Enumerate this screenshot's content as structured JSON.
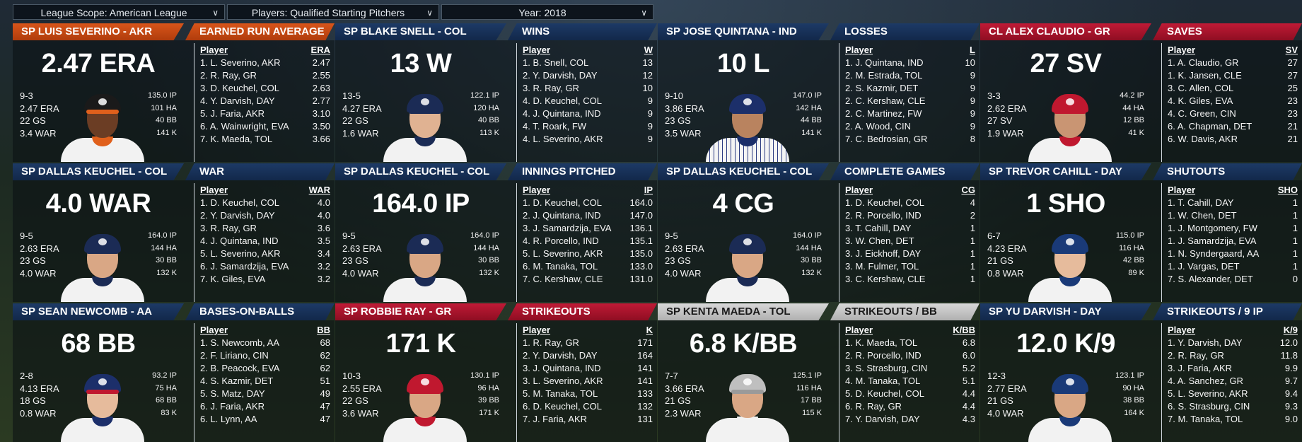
{
  "filters": {
    "scope": "League Scope: American League",
    "players": "Players: Qualified Starting Pitchers",
    "year": "Year: 2018"
  },
  "cards": [
    {
      "left_title": "SP LUIS SEVERINO - AKR",
      "right_title": "EARNED RUN AVERAGE",
      "color": "orange",
      "big": "2.47 ERA",
      "lstats": [
        "9-3",
        "2.47 ERA",
        "22 GS",
        "3.4 WAR"
      ],
      "rstats": [
        "135.0 IP",
        "101 HA",
        "40 BB",
        "141 K"
      ],
      "cap": "#1a1a1a",
      "bill": "#e0601c",
      "collar": "#e0601c",
      "skin": "#6b3d24",
      "pin": false,
      "header": [
        "Player",
        "ERA"
      ],
      "rows": [
        [
          "1. L. Severino, AKR",
          "2.47"
        ],
        [
          "2. R. Ray, GR",
          "2.55"
        ],
        [
          "3. D. Keuchel, COL",
          "2.63"
        ],
        [
          "4. Y. Darvish, DAY",
          "2.77"
        ],
        [
          "5. J. Faria, AKR",
          "3.10"
        ],
        [
          "6. A. Wainwright, EVA",
          "3.50"
        ],
        [
          "7. K. Maeda, TOL",
          "3.66"
        ]
      ]
    },
    {
      "left_title": "SP BLAKE SNELL - COL",
      "right_title": "WINS",
      "color": "navy",
      "big": "13 W",
      "lstats": [
        "13-5",
        "4.27 ERA",
        "22 GS",
        "1.6 WAR"
      ],
      "rstats": [
        "122.1 IP",
        "120 HA",
        "40 BB",
        "113 K"
      ],
      "cap": "#1b2b55",
      "bill": "#1b2b55",
      "collar": "#1b2b55",
      "skin": "#e0b292",
      "pin": false,
      "header": [
        "Player",
        "W"
      ],
      "rows": [
        [
          "1. B. Snell, COL",
          "13"
        ],
        [
          "2. Y. Darvish, DAY",
          "12"
        ],
        [
          "3. R. Ray, GR",
          "10"
        ],
        [
          "4. D. Keuchel, COL",
          "9"
        ],
        [
          "4. J. Quintana, IND",
          "9"
        ],
        [
          "4. T. Roark, FW",
          "9"
        ],
        [
          "4. L. Severino, AKR",
          "9"
        ]
      ]
    },
    {
      "left_title": "SP JOSE QUINTANA - IND",
      "right_title": "LOSSES",
      "color": "navy",
      "big": "10 L",
      "lstats": [
        "9-10",
        "3.86 ERA",
        "23 GS",
        "3.5 WAR"
      ],
      "rstats": [
        "147.0 IP",
        "142 HA",
        "44 BB",
        "141 K"
      ],
      "cap": "#1c2f6a",
      "bill": "#1c2f6a",
      "collar": "#1c2f6a",
      "skin": "#b9835f",
      "pin": true,
      "header": [
        "Player",
        "L"
      ],
      "rows": [
        [
          "1. J. Quintana, IND",
          "10"
        ],
        [
          "2. M. Estrada, TOL",
          "9"
        ],
        [
          "2. S. Kazmir, DET",
          "9"
        ],
        [
          "2. C. Kershaw, CLE",
          "9"
        ],
        [
          "2. C. Martinez, FW",
          "9"
        ],
        [
          "2. A. Wood, CIN",
          "9"
        ],
        [
          "7. C. Bedrosian, GR",
          "8"
        ]
      ]
    },
    {
      "left_title": "CL ALEX CLAUDIO - GR",
      "right_title": "SAVES",
      "color": "red",
      "big": "27 SV",
      "lstats": [
        "3-3",
        "2.62 ERA",
        "27 SV",
        "1.9 WAR"
      ],
      "rstats": [
        "44.2 IP",
        "44 HA",
        "12 BB",
        "41 K"
      ],
      "cap": "#c0182f",
      "bill": "#c0182f",
      "collar": "#c0182f",
      "skin": "#c99573",
      "pin": false,
      "header": [
        "Player",
        "SV"
      ],
      "rows": [
        [
          "1. A. Claudio, GR",
          "27"
        ],
        [
          "1. K. Jansen, CLE",
          "27"
        ],
        [
          "3. C. Allen, COL",
          "25"
        ],
        [
          "4. K. Giles, EVA",
          "23"
        ],
        [
          "4. C. Green, CIN",
          "23"
        ],
        [
          "6. A. Chapman, DET",
          "21"
        ],
        [
          "6. W. Davis, AKR",
          "21"
        ]
      ]
    },
    {
      "left_title": "SP DALLAS KEUCHEL - COL",
      "right_title": "WAR",
      "color": "navy",
      "big": "4.0 WAR",
      "lstats": [
        "9-5",
        "2.63 ERA",
        "23 GS",
        "4.0 WAR"
      ],
      "rstats": [
        "164.0 IP",
        "144 HA",
        "30 BB",
        "132 K"
      ],
      "cap": "#1b2b55",
      "bill": "#1b2b55",
      "collar": "#1b2b55",
      "skin": "#d9a785",
      "pin": false,
      "header": [
        "Player",
        "WAR"
      ],
      "rows": [
        [
          "1. D. Keuchel, COL",
          "4.0"
        ],
        [
          "2. Y. Darvish, DAY",
          "4.0"
        ],
        [
          "3. R. Ray, GR",
          "3.6"
        ],
        [
          "4. J. Quintana, IND",
          "3.5"
        ],
        [
          "5. L. Severino, AKR",
          "3.4"
        ],
        [
          "6. J. Samardzija, EVA",
          "3.2"
        ],
        [
          "7. K. Giles, EVA",
          "3.2"
        ]
      ]
    },
    {
      "left_title": "SP DALLAS KEUCHEL - COL",
      "right_title": "INNINGS PITCHED",
      "color": "navy",
      "big": "164.0 IP",
      "lstats": [
        "9-5",
        "2.63 ERA",
        "23 GS",
        "4.0 WAR"
      ],
      "rstats": [
        "164.0 IP",
        "144 HA",
        "30 BB",
        "132 K"
      ],
      "cap": "#1b2b55",
      "bill": "#1b2b55",
      "collar": "#1b2b55",
      "skin": "#d9a785",
      "pin": false,
      "header": [
        "Player",
        "IP"
      ],
      "rows": [
        [
          "1. D. Keuchel, COL",
          "164.0"
        ],
        [
          "2. J. Quintana, IND",
          "147.0"
        ],
        [
          "3. J. Samardzija, EVA",
          "136.1"
        ],
        [
          "4. R. Porcello, IND",
          "135.1"
        ],
        [
          "5. L. Severino, AKR",
          "135.0"
        ],
        [
          "6. M. Tanaka, TOL",
          "133.0"
        ],
        [
          "7. C. Kershaw, CLE",
          "131.0"
        ]
      ]
    },
    {
      "left_title": "SP DALLAS KEUCHEL - COL",
      "right_title": "COMPLETE GAMES",
      "color": "navy",
      "big": "4 CG",
      "lstats": [
        "9-5",
        "2.63 ERA",
        "23 GS",
        "4.0 WAR"
      ],
      "rstats": [
        "164.0 IP",
        "144 HA",
        "30 BB",
        "132 K"
      ],
      "cap": "#1b2b55",
      "bill": "#1b2b55",
      "collar": "#1b2b55",
      "skin": "#d9a785",
      "pin": false,
      "header": [
        "Player",
        "CG"
      ],
      "rows": [
        [
          "1. D. Keuchel, COL",
          "4"
        ],
        [
          "2. R. Porcello, IND",
          "2"
        ],
        [
          "3. T. Cahill, DAY",
          "1"
        ],
        [
          "3. W. Chen, DET",
          "1"
        ],
        [
          "3. J. Eickhoff, DAY",
          "1"
        ],
        [
          "3. M. Fulmer, TOL",
          "1"
        ],
        [
          "3. C. Kershaw, CLE",
          "1"
        ]
      ]
    },
    {
      "left_title": "SP TREVOR CAHILL - DAY",
      "right_title": "SHUTOUTS",
      "color": "navy",
      "big": "1 SHO",
      "lstats": [
        "6-7",
        "4.23 ERA",
        "21 GS",
        "0.8 WAR"
      ],
      "rstats": [
        "115.0 IP",
        "116 HA",
        "42 BB",
        "89 K"
      ],
      "cap": "#1a3a78",
      "bill": "#1a3a78",
      "collar": "#1a3a78",
      "skin": "#e6bb9c",
      "pin": false,
      "header": [
        "Player",
        "SHO"
      ],
      "rows": [
        [
          "1. T. Cahill, DAY",
          "1"
        ],
        [
          "1. W. Chen, DET",
          "1"
        ],
        [
          "1. J. Montgomery, FW",
          "1"
        ],
        [
          "1. J. Samardzija, EVA",
          "1"
        ],
        [
          "1. N. Syndergaard, AA",
          "1"
        ],
        [
          "1. J. Vargas, DET",
          "1"
        ],
        [
          "7. S. Alexander, DET",
          "0"
        ]
      ]
    },
    {
      "left_title": "SP SEAN NEWCOMB - AA",
      "right_title": "BASES-ON-BALLS",
      "color": "navy",
      "big": "68 BB",
      "lstats": [
        "2-8",
        "4.13 ERA",
        "18 GS",
        "0.8 WAR"
      ],
      "rstats": [
        "93.2 IP",
        "75 HA",
        "68 BB",
        "83 K"
      ],
      "cap": "#1c2f6a",
      "bill": "#c0182f",
      "collar": "#1c2f6a",
      "skin": "#e6bb9c",
      "pin": false,
      "header": [
        "Player",
        "BB"
      ],
      "rows": [
        [
          "1. S. Newcomb, AA",
          "68"
        ],
        [
          "2. F. Liriano, CIN",
          "62"
        ],
        [
          "2. B. Peacock, EVA",
          "62"
        ],
        [
          "4. S. Kazmir, DET",
          "51"
        ],
        [
          "5. S. Matz, DAY",
          "49"
        ],
        [
          "6. J. Faria, AKR",
          "47"
        ],
        [
          "6. L. Lynn, AA",
          "47"
        ]
      ]
    },
    {
      "left_title": "SP ROBBIE RAY - GR",
      "right_title": "STRIKEOUTS",
      "color": "red",
      "big": "171 K",
      "lstats": [
        "10-3",
        "2.55 ERA",
        "22 GS",
        "3.6 WAR"
      ],
      "rstats": [
        "130.1 IP",
        "96 HA",
        "39 BB",
        "171 K"
      ],
      "cap": "#c0182f",
      "bill": "#c0182f",
      "collar": "#c0182f",
      "skin": "#d9a785",
      "pin": false,
      "header": [
        "Player",
        "K"
      ],
      "rows": [
        [
          "1. R. Ray, GR",
          "171"
        ],
        [
          "2. Y. Darvish, DAY",
          "164"
        ],
        [
          "3. J. Quintana, IND",
          "141"
        ],
        [
          "3. L. Severino, AKR",
          "141"
        ],
        [
          "5. M. Tanaka, TOL",
          "133"
        ],
        [
          "6. D. Keuchel, COL",
          "132"
        ],
        [
          "7. J. Faria, AKR",
          "131"
        ]
      ]
    },
    {
      "left_title": "SP KENTA MAEDA - TOL",
      "right_title": "STRIKEOUTS / BB",
      "color": "silver",
      "big": "6.8 K/BB",
      "lstats": [
        "7-7",
        "3.66 ERA",
        "21 GS",
        "2.3 WAR"
      ],
      "rstats": [
        "125.1 IP",
        "116 HA",
        "17 BB",
        "115 K"
      ],
      "cap": "#bfbfbf",
      "bill": "#9a9a9a",
      "collar": "#f2f2f2",
      "skin": "#d9a785",
      "pin": false,
      "header": [
        "Player",
        "K/BB"
      ],
      "rows": [
        [
          "1. K. Maeda, TOL",
          "6.8"
        ],
        [
          "2. R. Porcello, IND",
          "6.0"
        ],
        [
          "3. S. Strasburg, CIN",
          "5.2"
        ],
        [
          "4. M. Tanaka, TOL",
          "5.1"
        ],
        [
          "5. D. Keuchel, COL",
          "4.4"
        ],
        [
          "6. R. Ray, GR",
          "4.4"
        ],
        [
          "7. Y. Darvish, DAY",
          "4.3"
        ]
      ]
    },
    {
      "left_title": "SP YU DARVISH - DAY",
      "right_title": "STRIKEOUTS / 9 IP",
      "color": "navy",
      "big": "12.0 K/9",
      "lstats": [
        "12-3",
        "2.77 ERA",
        "21 GS",
        "4.0 WAR"
      ],
      "rstats": [
        "123.1 IP",
        "90 HA",
        "38 BB",
        "164 K"
      ],
      "cap": "#1a3a78",
      "bill": "#1a3a78",
      "collar": "#1a3a78",
      "skin": "#d9a785",
      "pin": false,
      "header": [
        "Player",
        "K/9"
      ],
      "rows": [
        [
          "1. Y. Darvish, DAY",
          "12.0"
        ],
        [
          "2. R. Ray, GR",
          "11.8"
        ],
        [
          "3. J. Faria, AKR",
          "9.9"
        ],
        [
          "4. A. Sanchez, GR",
          "9.7"
        ],
        [
          "5. L. Severino, AKR",
          "9.4"
        ],
        [
          "6. S. Strasburg, CIN",
          "9.3"
        ],
        [
          "7. M. Tanaka, TOL",
          "9.0"
        ]
      ]
    }
  ]
}
